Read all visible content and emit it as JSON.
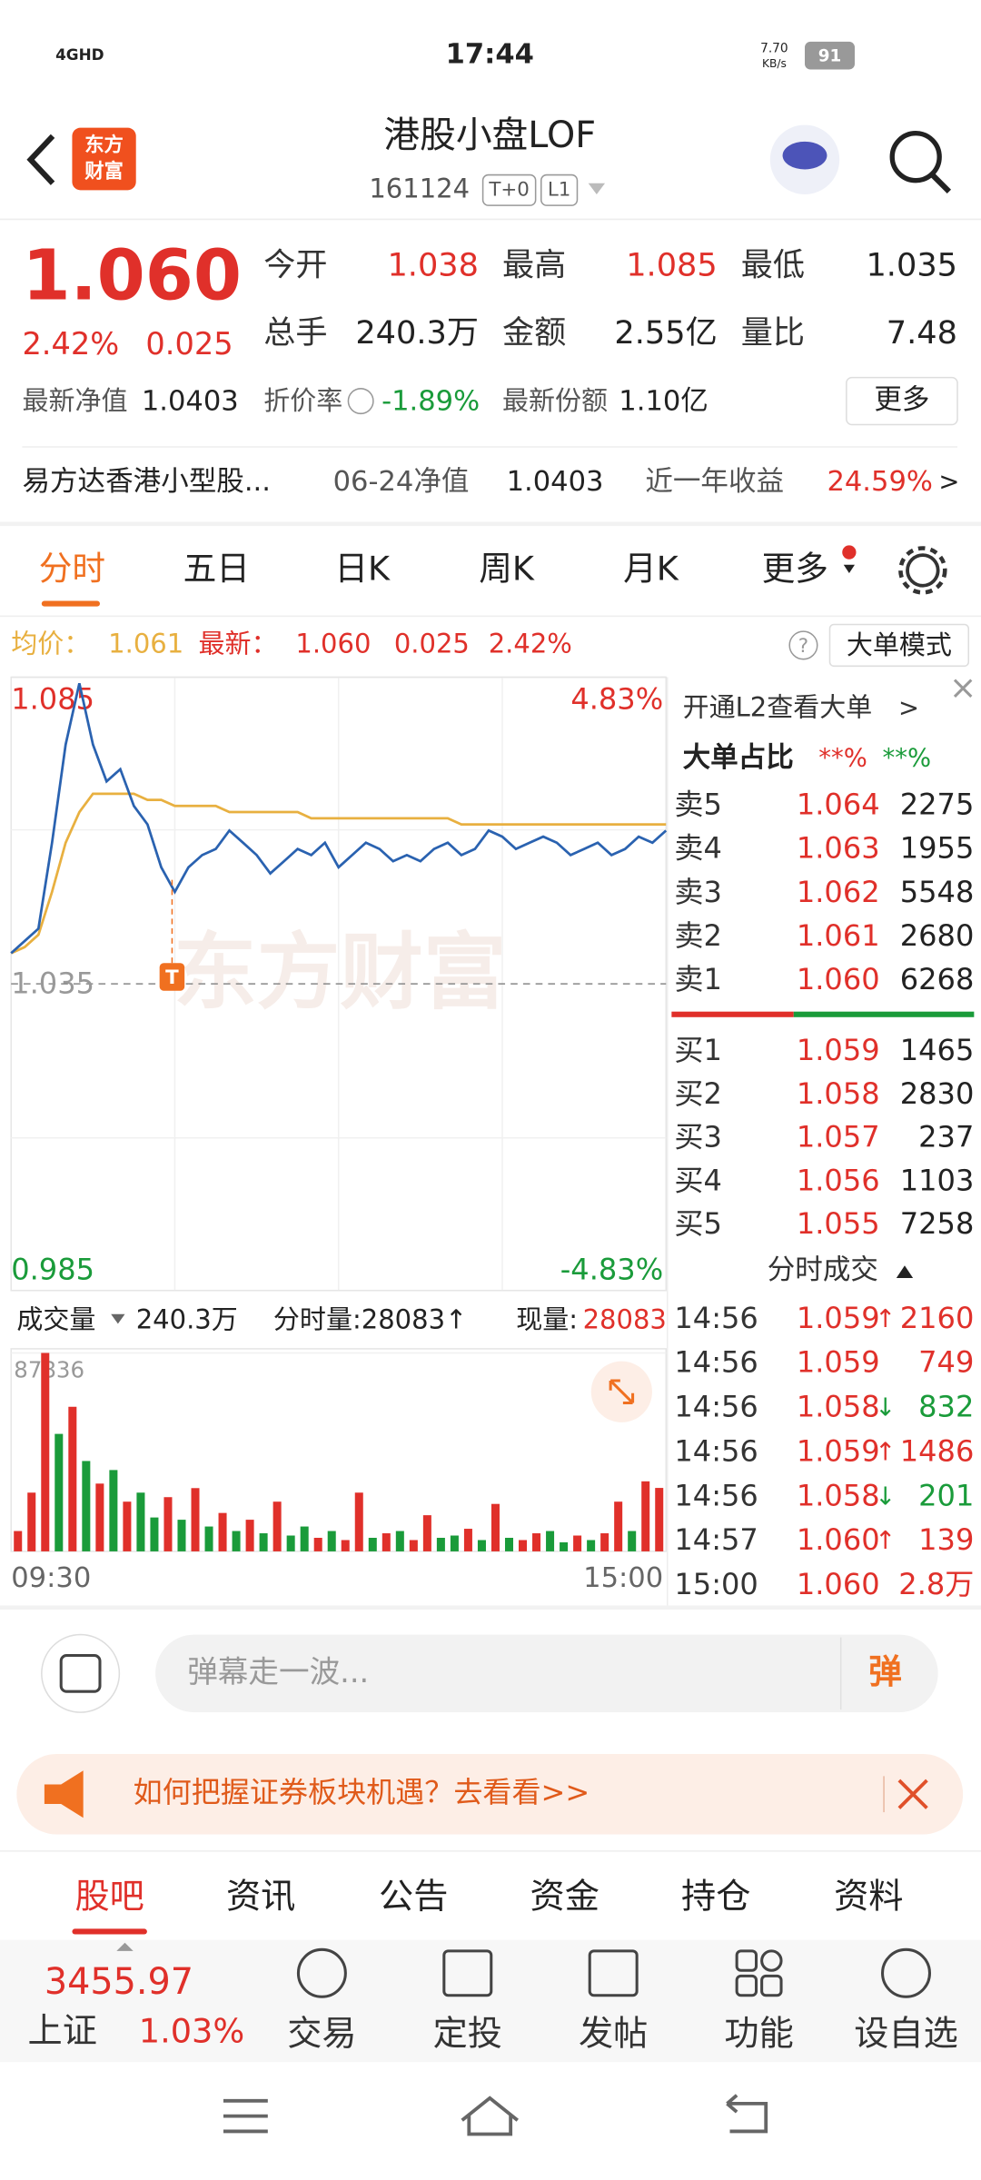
{
  "status_bar": {
    "network": "4GHD",
    "time": "17:44",
    "speed": "7.70",
    "speed_unit": "KB/s",
    "battery": "91"
  },
  "header": {
    "logo": [
      "东方",
      "财富"
    ],
    "title": "港股小盘LOF",
    "code": "161124",
    "tags": [
      "T+0",
      "L1"
    ]
  },
  "quote": {
    "price": "1.060",
    "change_pct": "2.42%",
    "change": "0.025",
    "stats": [
      {
        "label": "今开",
        "value": "1.038"
      },
      {
        "label": "最高",
        "value": "1.085"
      },
      {
        "label": "最低",
        "value": "1.035"
      },
      {
        "label": "总手",
        "value": "240.3万"
      },
      {
        "label": "金额",
        "value": "2.55亿"
      },
      {
        "label": "量比",
        "value": "7.48"
      }
    ],
    "extra": [
      {
        "label": "最新净值",
        "value": "1.0403"
      },
      {
        "label": "折价率",
        "value": "-1.89%"
      },
      {
        "label": "最新份额",
        "value": "1.10亿"
      }
    ],
    "more": "更多"
  },
  "fund_bar": {
    "name": "易方达香港小型股...",
    "nav_label": "06-24净值",
    "nav": "1.0403",
    "return_label": "近一年收益",
    "return": "24.59%",
    "link": ">"
  },
  "tabs": {
    "items": [
      "分时",
      "五日",
      "日K",
      "周K",
      "月K",
      "更多"
    ],
    "active": 0
  },
  "info": {
    "avg_label": "均价：",
    "avg": "1.061",
    "last_label": "最新：",
    "last": "1.060",
    "change": "0.025",
    "change_pct": "2.42%",
    "help": "?",
    "mode": "大单模式"
  },
  "chart_data": [
    {
      "type": "line",
      "watermark": "东方财富",
      "marker": "T",
      "ylim": [
        0.985,
        1.085
      ],
      "yticks": [
        0.985,
        1.035,
        1.085
      ],
      "y2lim": [
        -4.83,
        4.83
      ],
      "y2ticks": [
        {
          "value": -4.83,
          "label": "-4.83%"
        },
        {
          "value": 4.83,
          "label": "4.83%"
        }
      ],
      "series": [
        {
          "color": "#2a62b0",
          "values": [
            1.04,
            1.042,
            1.044,
            1.058,
            1.074,
            1.084,
            1.074,
            1.068,
            1.07,
            1.064,
            1.061,
            1.054,
            1.05,
            1.054,
            1.056,
            1.057,
            1.06,
            1.058,
            1.056,
            1.053,
            1.055,
            1.057,
            1.056,
            1.058,
            1.054,
            1.056,
            1.058,
            1.057,
            1.055,
            1.056,
            1.055,
            1.057,
            1.058,
            1.056,
            1.057,
            1.06,
            1.059,
            1.057,
            1.058,
            1.059,
            1.058,
            1.056,
            1.057,
            1.058,
            1.056,
            1.057,
            1.059,
            1.058,
            1.06
          ]
        },
        {
          "color": "#e8b040",
          "values": [
            1.04,
            1.041,
            1.043,
            1.05,
            1.058,
            1.063,
            1.066,
            1.066,
            1.066,
            1.066,
            1.065,
            1.065,
            1.064,
            1.064,
            1.064,
            1.064,
            1.063,
            1.063,
            1.063,
            1.063,
            1.063,
            1.063,
            1.062,
            1.062,
            1.062,
            1.062,
            1.062,
            1.062,
            1.062,
            1.062,
            1.062,
            1.062,
            1.062,
            1.061,
            1.061,
            1.061,
            1.061,
            1.061,
            1.061,
            1.061,
            1.061,
            1.061,
            1.061,
            1.061,
            1.061,
            1.061,
            1.061,
            1.061,
            1.061
          ]
        }
      ]
    },
    {
      "type": "bar",
      "label": "成交量",
      "total": "240.3万",
      "minute_volume": "分时量:28083↑",
      "current_label": "现量:",
      "current": "28083",
      "ylim": [
        0,
        87836
      ],
      "yticks": [
        87836
      ],
      "x_labels": [
        "09:30",
        "15:00"
      ],
      "values": [
        9000,
        26000,
        87836,
        52000,
        64000,
        40000,
        30000,
        36000,
        22000,
        26000,
        15000,
        24000,
        14000,
        28000,
        11000,
        17000,
        9000,
        14000,
        8000,
        22000,
        7000,
        11000,
        6000,
        9000,
        5000,
        26000,
        6000,
        8000,
        9000,
        5000,
        16000,
        6000,
        7000,
        10000,
        5000,
        21000,
        6000,
        5000,
        8000,
        9000,
        4000,
        7000,
        5000,
        8000,
        22000,
        9000,
        31000,
        28083
      ],
      "colors": [
        "#e0302a",
        "#e0302a",
        "#e0302a",
        "#1a9b3a",
        "#e0302a",
        "#1a9b3a",
        "#e0302a",
        "#1a9b3a",
        "#e0302a",
        "#1a9b3a",
        "#1a9b3a",
        "#e0302a",
        "#1a9b3a",
        "#e0302a",
        "#1a9b3a",
        "#e0302a",
        "#1a9b3a",
        "#e0302a",
        "#1a9b3a",
        "#e0302a",
        "#1a9b3a",
        "#1a9b3a",
        "#e0302a",
        "#1a9b3a",
        "#e0302a",
        "#e0302a",
        "#1a9b3a",
        "#e0302a",
        "#1a9b3a",
        "#e0302a",
        "#e0302a",
        "#1a9b3a",
        "#1a9b3a",
        "#e0302a",
        "#1a9b3a",
        "#e0302a",
        "#1a9b3a",
        "#e0302a",
        "#e0302a",
        "#1a9b3a",
        "#1a9b3a",
        "#e0302a",
        "#1a9b3a",
        "#e0302a",
        "#e0302a",
        "#1a9b3a",
        "#e0302a",
        "#e0302a"
      ]
    }
  ],
  "order_book": {
    "l2": "开通L2查看大单",
    "l2_arrow": ">",
    "ratio_label": "大单占比",
    "ratio_sell": "**%",
    "ratio_buy": "**%",
    "asks": [
      {
        "label": "卖5",
        "price": "1.064",
        "volume": "2275"
      },
      {
        "label": "卖4",
        "price": "1.063",
        "volume": "1955"
      },
      {
        "label": "卖3",
        "price": "1.062",
        "volume": "5548"
      },
      {
        "label": "卖2",
        "price": "1.061",
        "volume": "2680"
      },
      {
        "label": "卖1",
        "price": "1.060",
        "volume": "6268"
      }
    ],
    "bids": [
      {
        "label": "买1",
        "price": "1.059",
        "volume": "1465"
      },
      {
        "label": "买2",
        "price": "1.058",
        "volume": "2830"
      },
      {
        "label": "买3",
        "price": "1.057",
        "volume": "237"
      },
      {
        "label": "买4",
        "price": "1.056",
        "volume": "1103"
      },
      {
        "label": "买5",
        "price": "1.055",
        "volume": "7258"
      }
    ],
    "trades_title": "分时成交",
    "trades": [
      {
        "time": "14:56",
        "price": "1.059",
        "arrow": "↑",
        "volume": "2160",
        "color": "#e0302a"
      },
      {
        "time": "14:56",
        "price": "1.059",
        "volume": "749",
        "color": "#e0302a"
      },
      {
        "time": "14:56",
        "price": "1.058",
        "arrow": "↓",
        "volume": "832",
        "color": "#1a9b3a"
      },
      {
        "time": "14:56",
        "price": "1.059",
        "arrow": "↑",
        "volume": "1486",
        "color": "#e0302a"
      },
      {
        "time": "14:56",
        "price": "1.058",
        "arrow": "↓",
        "volume": "201",
        "color": "#1a9b3a"
      },
      {
        "time": "14:57",
        "price": "1.060",
        "arrow": "↑",
        "volume": "139",
        "color": "#e0302a"
      },
      {
        "time": "15:00",
        "price": "1.060",
        "volume": "2.8万",
        "color": "#e0302a"
      }
    ]
  },
  "comment": {
    "placeholder": "弹幕走一波...",
    "button": "弹"
  },
  "banner": {
    "text": "如何把握证券板块机遇？去看看>>"
  },
  "bottom_tabs": {
    "items": [
      "股吧",
      "资讯",
      "公告",
      "资金",
      "持仓",
      "资料"
    ],
    "active": 0
  },
  "bottom_nav": {
    "index_value": "3455.97",
    "index_name": "上证",
    "index_change": "1.03%",
    "items": [
      "交易",
      "定投",
      "发帖",
      "功能",
      "设自选"
    ]
  }
}
